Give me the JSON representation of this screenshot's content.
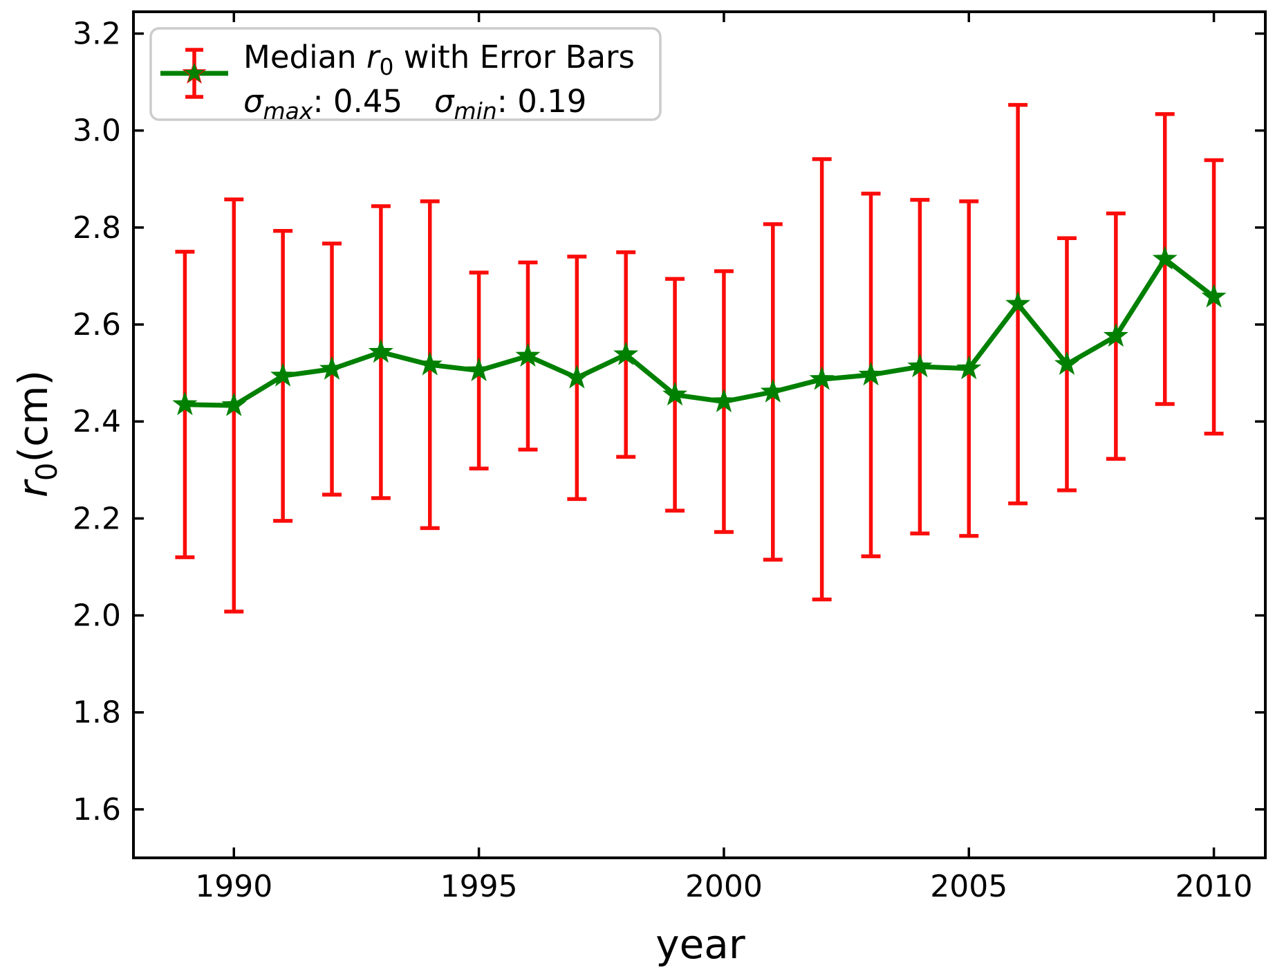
{
  "chart_data": {
    "type": "line",
    "xlabel": "year",
    "ylabel": {
      "var": "r",
      "sub": "0",
      "unit": "(cm)"
    },
    "x": [
      1989,
      1990,
      1991,
      1992,
      1993,
      1994,
      1995,
      1996,
      1997,
      1998,
      1999,
      2000,
      2001,
      2002,
      2003,
      2004,
      2005,
      2006,
      2007,
      2008,
      2009,
      2010
    ],
    "series": [
      {
        "name": "Median r0 with Error Bars",
        "values": [
          2.435,
          2.433,
          2.494,
          2.508,
          2.543,
          2.517,
          2.505,
          2.535,
          2.49,
          2.538,
          2.455,
          2.441,
          2.461,
          2.487,
          2.496,
          2.513,
          2.509,
          2.642,
          2.518,
          2.576,
          2.735,
          2.657
        ],
        "sigma": [
          0.315,
          0.425,
          0.299,
          0.259,
          0.301,
          0.337,
          0.202,
          0.193,
          0.25,
          0.211,
          0.239,
          0.269,
          0.346,
          0.454,
          0.374,
          0.344,
          0.345,
          0.411,
          0.26,
          0.253,
          0.299,
          0.282
        ],
        "marker": "star"
      }
    ],
    "xlim": [
      1987.95,
      2011.05
    ],
    "ylim": [
      1.5,
      3.245
    ],
    "xticks": {
      "values": [
        1990,
        1995,
        2000,
        2005,
        2010
      ],
      "labels": [
        "1990",
        "1995",
        "2000",
        "2005",
        "2010"
      ]
    },
    "yticks": {
      "values": [
        1.6,
        1.8,
        2.0,
        2.2,
        2.4,
        2.6,
        2.8,
        3.0,
        3.2
      ],
      "labels": [
        "1.6",
        "1.8",
        "2.0",
        "2.2",
        "2.4",
        "2.6",
        "2.8",
        "3.0",
        "3.2"
      ]
    },
    "grid": false,
    "legend": {
      "position": "upper left",
      "line1": {
        "pre": "Median ",
        "var": "r",
        "sub": "0",
        "post": " with Error Bars"
      },
      "line2": {
        "sigma1": "σ",
        "sub1": "max",
        "val1": ": 0.45",
        "sigma2": "σ",
        "sub2": "min",
        "val2": ": 0.19"
      }
    },
    "colors": {
      "line": "#008000",
      "error": "#fa0c0a",
      "axis": "#000000",
      "legend_border": "#cccccc",
      "background": "#ffffff"
    }
  }
}
